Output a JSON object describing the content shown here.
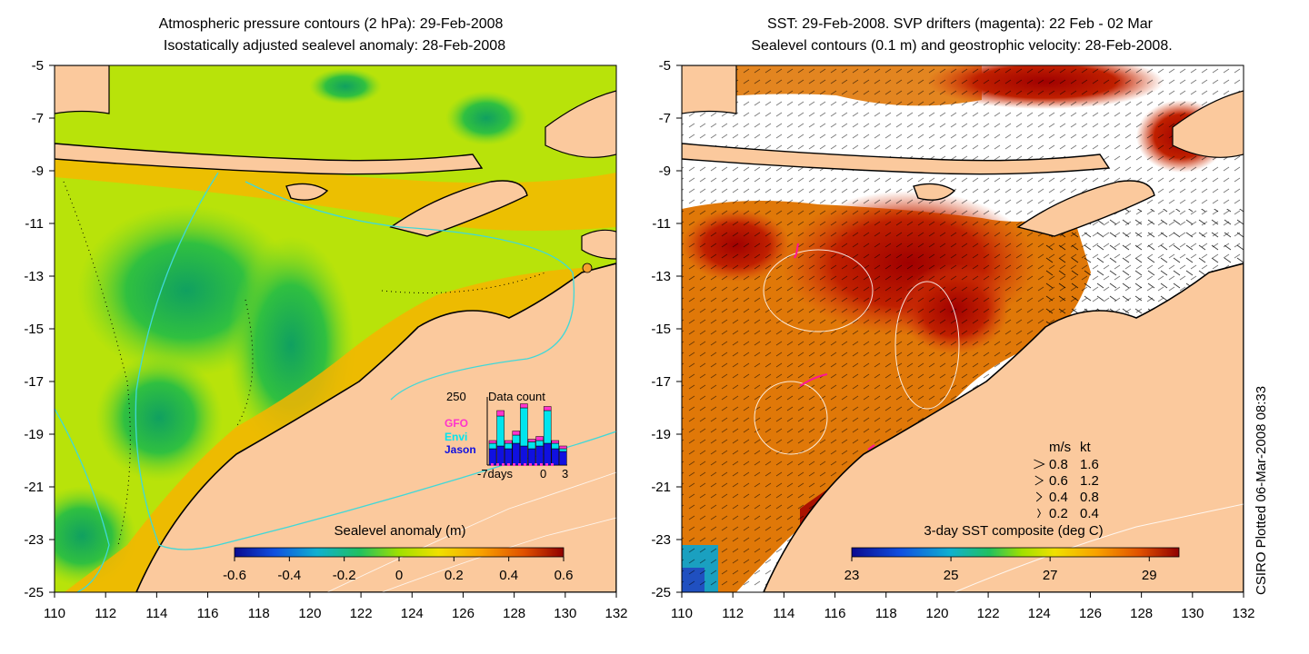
{
  "chart_data": [
    {
      "type": "heatmap",
      "title_line1": "Atmospheric pressure contours (2 hPa): 29-Feb-2008",
      "title_line2": "Isostatically adjusted sealevel anomaly: 28-Feb-2008",
      "x_ticks": [
        "110",
        "112",
        "114",
        "116",
        "118",
        "120",
        "122",
        "124",
        "126",
        "128",
        "130",
        "132"
      ],
      "y_ticks": [
        "-5",
        "-7",
        "-9",
        "-11",
        "-13",
        "-15",
        "-17",
        "-19",
        "-21",
        "-23",
        "-25"
      ],
      "xlim": [
        110,
        132
      ],
      "ylim": [
        -25,
        -5
      ],
      "colorbar": {
        "label": "Sealevel anomaly (m)",
        "ticks": [
          "-0.6",
          "-0.4",
          "-0.2",
          "0",
          "0.2",
          "0.4",
          "0.6"
        ],
        "range": [
          -0.6,
          0.6
        ]
      },
      "inset": {
        "title": "Data count",
        "ymax_label": "250",
        "x_labels": [
          "-7days",
          "0",
          "3"
        ],
        "legend": [
          {
            "name": "GFO",
            "color": "#ff33cc"
          },
          {
            "name": "Envi",
            "color": "#00e5ee"
          },
          {
            "name": "Jason",
            "color": "#1010e0"
          }
        ],
        "bars": [
          {
            "day": -7,
            "jason": 60,
            "envi": 20,
            "gfo": 10
          },
          {
            "day": -6,
            "jason": 70,
            "envi": 110,
            "gfo": 20
          },
          {
            "day": -5,
            "jason": 60,
            "envi": 20,
            "gfo": 10
          },
          {
            "day": -4,
            "jason": 80,
            "envi": 30,
            "gfo": 15
          },
          {
            "day": -3,
            "jason": 70,
            "envi": 140,
            "gfo": 15
          },
          {
            "day": -2,
            "jason": 60,
            "envi": 25,
            "gfo": 10
          },
          {
            "day": -1,
            "jason": 70,
            "envi": 20,
            "gfo": 15
          },
          {
            "day": 0,
            "jason": 80,
            "envi": 120,
            "gfo": 15
          },
          {
            "day": 1,
            "jason": 60,
            "envi": 20,
            "gfo": 10
          },
          {
            "day": 2,
            "jason": 50,
            "envi": 10,
            "gfo": 10
          }
        ]
      }
    },
    {
      "type": "heatmap",
      "title_line1": "SST: 29-Feb-2008. SVP drifters (magenta): 22 Feb - 02 Mar",
      "title_line2": "Sealevel contours (0.1 m) and geostrophic velocity: 28-Feb-2008.",
      "x_ticks": [
        "110",
        "112",
        "114",
        "116",
        "118",
        "120",
        "122",
        "124",
        "126",
        "128",
        "130",
        "132"
      ],
      "y_ticks": [
        "-5",
        "-7",
        "-9",
        "-11",
        "-13",
        "-15",
        "-17",
        "-19",
        "-21",
        "-23",
        "-25"
      ],
      "xlim": [
        110,
        132
      ],
      "ylim": [
        -25,
        -5
      ],
      "colorbar": {
        "label": "3-day SST composite (deg C)",
        "ticks": [
          "23",
          "25",
          "27",
          "29"
        ],
        "range": [
          23,
          29.6
        ]
      },
      "velocity_legend": {
        "header_ms": "m/s",
        "header_kt": "kt",
        "rows": [
          {
            "ms": "0.8",
            "kt": "1.6"
          },
          {
            "ms": "0.6",
            "kt": "1.2"
          },
          {
            "ms": "0.4",
            "kt": "0.8"
          },
          {
            "ms": "0.2",
            "kt": "0.4"
          }
        ]
      }
    }
  ],
  "credit": "CSIRO Plotted 06-Mar-2008 08:33",
  "colors": {
    "land": "#fbc99d",
    "coast": "#000000",
    "bathymetry_contour": "#40d8d8",
    "drifter": "#ff1493",
    "no_data": "#ffffff"
  }
}
